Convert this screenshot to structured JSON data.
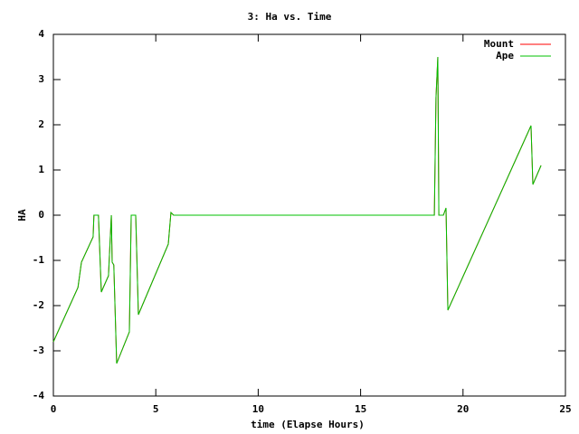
{
  "chart_data": {
    "type": "line",
    "title": "3: Ha vs. Time",
    "x_label": "time (Elapse Hours)",
    "y_label": "HA",
    "x": [
      0,
      1.2,
      1.37,
      1.94,
      1.98,
      2.2,
      2.34,
      2.69,
      2.83,
      2.87,
      2.95,
      3.09,
      3.71,
      3.8,
      4.02,
      4.15,
      5.61,
      5.74,
      5.87,
      18.6,
      18.68,
      18.77,
      18.82,
      19.04,
      19.17,
      19.26,
      23.32,
      23.41,
      23.81
    ],
    "series": [
      {
        "name": "Mount",
        "color": "#ff0000",
        "values": [
          -2.8,
          -1.6,
          -1.04,
          -0.48,
          0,
          0,
          -1.7,
          -1.34,
          0,
          -1.04,
          -1.1,
          -3.28,
          -2.58,
          0,
          0,
          -2.2,
          -0.64,
          0.06,
          0,
          0,
          2.6,
          3.5,
          0,
          0,
          0.16,
          -2.1,
          1.98,
          0.68,
          1.1
        ]
      },
      {
        "name": "Ape",
        "color": "#00c000",
        "values": [
          -2.8,
          -1.6,
          -1.04,
          -0.48,
          0,
          0,
          -1.7,
          -1.34,
          0,
          -1.04,
          -1.1,
          -3.28,
          -2.58,
          0,
          0,
          -2.2,
          -0.64,
          0.06,
          0,
          0,
          2.6,
          3.5,
          0,
          0,
          0.16,
          -2.1,
          1.98,
          0.68,
          1.1
        ]
      }
    ],
    "xlim": [
      0,
      25
    ],
    "xticks": [
      0,
      5,
      10,
      15,
      20,
      25
    ],
    "ylim": [
      -4,
      4
    ],
    "yticks": [
      -4,
      -3,
      -2,
      -1,
      0,
      1,
      2,
      3,
      4
    ],
    "legend": "top-right"
  }
}
